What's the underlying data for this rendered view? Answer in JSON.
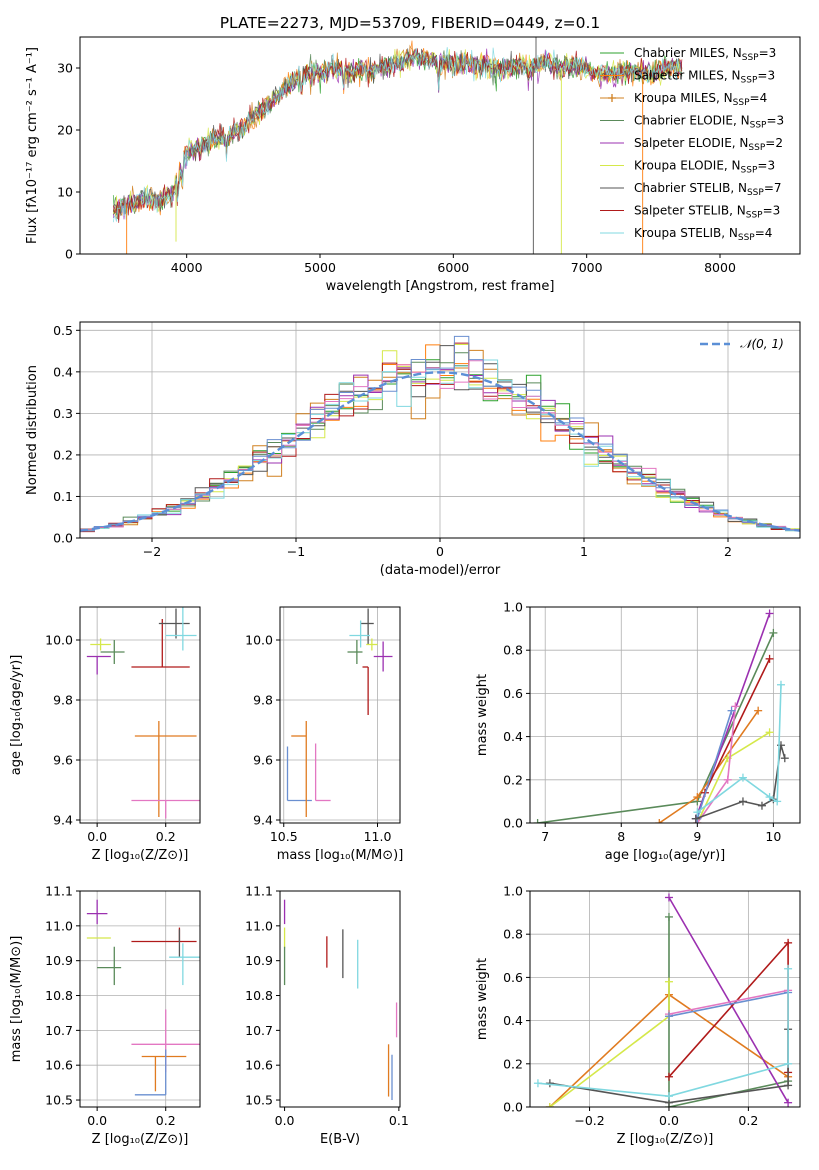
{
  "colors": [
    "#1f77b4",
    "#ff7f0e",
    "#2ca02c",
    "#d62728",
    "#9467bd",
    "#8c564b",
    "#e377c2",
    "#7f7f7f",
    "#bcbd22",
    "#17becf"
  ],
  "chart_data": [
    {
      "id": "spectrum",
      "type": "line",
      "title": "PLATE=2273, MJD=53709, FIBERID=0449, z=0.1",
      "xlabel": "wavelength [Angstrom, rest frame]",
      "ylabel": "Flux [fλ10⁻¹⁷ erg cm⁻² s⁻¹ A⁻¹]",
      "xlim": [
        3200,
        8600
      ],
      "ylim": [
        0,
        35
      ],
      "xticks": [
        4000,
        5000,
        6000,
        7000,
        8000
      ],
      "yticks": [
        0,
        10,
        20,
        30
      ],
      "grid": false,
      "legend_position": "upper-right",
      "spectrum_points": {
        "x": [
          3450,
          3550,
          3700,
          3800,
          3900,
          4000,
          4100,
          4200,
          4300,
          4400,
          4500,
          4600,
          4700,
          4800,
          4900,
          5000,
          5100,
          5200,
          5300,
          5400,
          5500,
          5600,
          5700,
          5800,
          5900,
          6000,
          6100,
          6200,
          6300,
          6400,
          6500,
          6600,
          6700,
          6800,
          6900,
          7000,
          7100,
          7200,
          7300,
          7400,
          7500,
          7600,
          7700
        ],
        "y": [
          7,
          8,
          9,
          8.5,
          10,
          16.5,
          17.5,
          18.5,
          19,
          20,
          22,
          24,
          26,
          28,
          29,
          29.5,
          30,
          29.5,
          29.5,
          29.5,
          30.5,
          31,
          32,
          31.5,
          31,
          30.5,
          31,
          30.5,
          30,
          30,
          30.5,
          30,
          31,
          30,
          30.5,
          29.5,
          29,
          29,
          29.5,
          29.5,
          29,
          30,
          30
        ]
      },
      "series": [
        {
          "name": "Chabrier MILES, N_SSP=3",
          "label_main": "Chabrier MILES, N",
          "label_sub": "SSP",
          "label_tail": "=3",
          "color": "#2ca02c",
          "marker": ""
        },
        {
          "name": "Salpeter MILES, N_SSP=3",
          "label_main": "Salpeter MILES, N",
          "label_sub": "SSP",
          "label_tail": "=3",
          "color": "#ff7f0e",
          "marker": ""
        },
        {
          "name": "Kroupa MILES, N_SSP=4",
          "label_main": "Kroupa MILES, N",
          "label_sub": "SSP",
          "label_tail": "=4",
          "color": "#d08020",
          "marker": "+"
        },
        {
          "name": "Chabrier ELODIE, N_SSP=3",
          "label_main": "Chabrier ELODIE, N",
          "label_sub": "SSP",
          "label_tail": "=3",
          "color": "#5a8a5a",
          "marker": ""
        },
        {
          "name": "Salpeter ELODIE, N_SSP=2",
          "label_main": "Salpeter ELODIE, N",
          "label_sub": "SSP",
          "label_tail": "=2",
          "color": "#9b30b0",
          "marker": ""
        },
        {
          "name": "Kroupa ELODIE, N_SSP=3",
          "label_main": "Kroupa ELODIE, N",
          "label_sub": "SSP",
          "label_tail": "=3",
          "color": "#d5e84a",
          "marker": ""
        },
        {
          "name": "Chabrier STELIB, N_SSP=7",
          "label_main": "Chabrier STELIB, N",
          "label_sub": "SSP",
          "label_tail": "=7",
          "color": "#555555",
          "marker": ""
        },
        {
          "name": "Salpeter STELIB, N_SSP=3",
          "label_main": "Salpeter STELIB, N",
          "label_sub": "SSP",
          "label_tail": "=3",
          "color": "#b01a1a",
          "marker": ""
        },
        {
          "name": "Kroupa STELIB, N_SSP=4",
          "label_main": "Kroupa STELIB, N",
          "label_sub": "SSP",
          "label_tail": "=4",
          "color": "#80d8e0",
          "marker": ""
        }
      ]
    },
    {
      "id": "residuals",
      "type": "line",
      "xlabel": "(data-model)/error",
      "ylabel": "Normed distribution",
      "xlim": [
        -2.5,
        2.5
      ],
      "ylim": [
        0,
        0.52
      ],
      "xticks": [
        -2,
        -1,
        0,
        1,
        2
      ],
      "yticks": [
        0.0,
        0.1,
        0.2,
        0.3,
        0.4,
        0.5
      ],
      "grid": true,
      "legend": "𝒩(0, 1)",
      "legend_position": "upper-right",
      "reference_curve": {
        "name": "N(0,1)",
        "mean": 0,
        "sigma": 1,
        "color": "#5b8fd6",
        "style": "dashed"
      },
      "histogram_bin_width": 0.1,
      "histogram_colors": [
        "#2ca02c",
        "#ff7f0e",
        "#d08020",
        "#5a8a5a",
        "#9b30b0",
        "#d5e84a",
        "#555555",
        "#b01a1a",
        "#80d8e0",
        "#e377c2",
        "#6a8fd0"
      ]
    },
    {
      "id": "z-age",
      "type": "scatter",
      "xlabel": "Z [log₁₀(Z/Z⊙)]",
      "ylabel": "age  [log₁₀(age/yr)]",
      "xlim": [
        -0.05,
        0.3
      ],
      "ylim": [
        9.39,
        10.11
      ],
      "xticks": [
        0.0,
        0.2
      ],
      "yticks": [
        9.4,
        9.6,
        9.8,
        10.0
      ],
      "grid": true,
      "points": [
        {
          "x": 0.18,
          "y": 9.68,
          "xerr": [
            0.07,
            0.11
          ],
          "yerr": [
            0.27,
            0.05
          ],
          "color": "#e07b20"
        },
        {
          "x": 0.2,
          "y": 9.465,
          "xerr": [
            0.1,
            0.1
          ],
          "yerr": [
            0.06,
            0.0
          ],
          "color": "#e377c2"
        },
        {
          "x": 0.19,
          "y": 9.91,
          "xerr": [
            0.09,
            0.08
          ],
          "yerr": [
            0.0,
            0.16
          ],
          "color": "#b01a1a"
        },
        {
          "x": 0.23,
          "y": 10.055,
          "xerr": [
            0.05,
            0.04
          ],
          "yerr": [
            0.05,
            0.05
          ],
          "color": "#555555"
        },
        {
          "x": 0.25,
          "y": 10.015,
          "xerr": [
            0.05,
            0.04
          ],
          "yerr": [
            0.05,
            0.1
          ],
          "color": "#80d8e0"
        },
        {
          "x": 0.0,
          "y": 9.945,
          "xerr": [
            0.03,
            0.04
          ],
          "yerr": [
            0.06,
            0.0
          ],
          "color": "#9b30b0"
        },
        {
          "x": 0.01,
          "y": 9.985,
          "xerr": [
            0.03,
            0.03
          ],
          "yerr": [
            0.02,
            0.02
          ],
          "color": "#d5e84a"
        },
        {
          "x": 0.05,
          "y": 9.96,
          "xerr": [
            0.04,
            0.03
          ],
          "yerr": [
            0.04,
            0.04
          ],
          "color": "#5a8a5a"
        }
      ]
    },
    {
      "id": "mass-age",
      "type": "scatter",
      "xlabel": "mass [log₁₀(M/M⊙)]",
      "ylabel": "",
      "xlim": [
        10.48,
        11.12
      ],
      "ylim": [
        9.39,
        10.11
      ],
      "xticks": [
        10.5,
        11.0
      ],
      "yticks": [
        9.4,
        9.6,
        9.8,
        10.0
      ],
      "grid": true,
      "points": [
        {
          "x": 10.52,
          "y": 9.465,
          "xerr": [
            0.0,
            0.13
          ],
          "yerr": [
            0.0,
            0.18
          ],
          "color": "#6a8fd0"
        },
        {
          "x": 10.62,
          "y": 9.68,
          "xerr": [
            0.08,
            0.0
          ],
          "yerr": [
            0.27,
            0.05
          ],
          "color": "#e07b20"
        },
        {
          "x": 10.67,
          "y": 9.465,
          "xerr": [
            0.0,
            0.08
          ],
          "yerr": [
            0.0,
            0.19
          ],
          "color": "#e377c2"
        },
        {
          "x": 10.95,
          "y": 9.91,
          "xerr": [
            0.03,
            0.0
          ],
          "yerr": [
            0.16,
            0.0
          ],
          "color": "#b01a1a"
        },
        {
          "x": 10.95,
          "y": 10.055,
          "xerr": [
            0.04,
            0.03
          ],
          "yerr": [
            0.07,
            0.05
          ],
          "color": "#555555"
        },
        {
          "x": 10.91,
          "y": 10.015,
          "xerr": [
            0.06,
            0.05
          ],
          "yerr": [
            0.04,
            0.05
          ],
          "color": "#80d8e0"
        },
        {
          "x": 11.03,
          "y": 9.945,
          "xerr": [
            0.05,
            0.05
          ],
          "yerr": [
            0.05,
            0.05
          ],
          "color": "#9b30b0"
        },
        {
          "x": 10.97,
          "y": 9.985,
          "xerr": [
            0.03,
            0.03
          ],
          "yerr": [
            0.02,
            0.02
          ],
          "color": "#d5e84a"
        },
        {
          "x": 10.89,
          "y": 9.96,
          "xerr": [
            0.05,
            0.03
          ],
          "yerr": [
            0.04,
            0.04
          ],
          "color": "#5a8a5a"
        }
      ]
    },
    {
      "id": "age-massweight",
      "type": "line",
      "xlabel": "age  [log₁₀(age/yr)]",
      "ylabel": "mass weight",
      "xlim": [
        6.8,
        10.35
      ],
      "ylim": [
        0,
        1.0
      ],
      "xticks": [
        7,
        8,
        9,
        10
      ],
      "yticks": [
        0.0,
        0.2,
        0.4,
        0.6,
        0.8,
        1.0
      ],
      "grid": true,
      "series": [
        {
          "color": "#5a8a5a",
          "x": [
            6.9,
            9.0,
            10.0
          ],
          "y": [
            0.0,
            0.1,
            0.88
          ]
        },
        {
          "color": "#e07b20",
          "x": [
            8.5,
            9.0,
            9.8
          ],
          "y": [
            0.0,
            0.12,
            0.52
          ]
        },
        {
          "color": "#9b30b0",
          "x": [
            8.98,
            9.95
          ],
          "y": [
            0.02,
            0.97
          ]
        },
        {
          "color": "#b01a1a",
          "x": [
            9.1,
            9.95
          ],
          "y": [
            0.14,
            0.76
          ]
        },
        {
          "color": "#d5e84a",
          "x": [
            9.0,
            9.4,
            9.95
          ],
          "y": [
            0.0,
            0.3,
            0.42
          ]
        },
        {
          "color": "#e377c2",
          "x": [
            9.0,
            9.4,
            9.5
          ],
          "y": [
            0.0,
            0.2,
            0.54
          ]
        },
        {
          "color": "#6a8fd0",
          "x": [
            9.0,
            9.45
          ],
          "y": [
            0.02,
            0.52
          ]
        },
        {
          "color": "#555555",
          "x": [
            8.98,
            9.6,
            9.85,
            10.0,
            10.1,
            10.15
          ],
          "y": [
            0.02,
            0.1,
            0.08,
            0.11,
            0.36,
            0.3
          ]
        },
        {
          "color": "#80d8e0",
          "x": [
            9.0,
            9.6,
            9.95,
            10.05,
            10.1
          ],
          "y": [
            0.05,
            0.21,
            0.12,
            0.1,
            0.64
          ]
        }
      ]
    },
    {
      "id": "z-mass",
      "type": "scatter",
      "xlabel": "Z [log₁₀(Z/Z⊙)]",
      "ylabel": "mass [log₁₀(M/M⊙)]",
      "xlim": [
        -0.05,
        0.3
      ],
      "ylim": [
        10.48,
        11.1
      ],
      "xticks": [
        0.0,
        0.2
      ],
      "yticks": [
        10.5,
        10.6,
        10.7,
        10.8,
        10.9,
        11.0,
        11.1
      ],
      "grid": true,
      "points": [
        {
          "x": 0.0,
          "y": 11.035,
          "xerr": [
            0.03,
            0.03
          ],
          "yerr": [
            0.03,
            0.04
          ],
          "color": "#9b30b0"
        },
        {
          "x": 0.01,
          "y": 10.965,
          "xerr": [
            0.04,
            0.03
          ],
          "yerr": [
            0.0,
            0.0
          ],
          "color": "#d5e84a"
        },
        {
          "x": 0.05,
          "y": 10.88,
          "xerr": [
            0.05,
            0.02
          ],
          "yerr": [
            0.05,
            0.06
          ],
          "color": "#5a8a5a"
        },
        {
          "x": 0.24,
          "y": 10.955,
          "xerr": [
            0.14,
            0.05
          ],
          "yerr": [
            0.0,
            0.04
          ],
          "color": "#b01a1a"
        },
        {
          "x": 0.24,
          "y": 10.95,
          "xerr": [
            0.0,
            0.0
          ],
          "yerr": [
            0.04,
            0.04
          ],
          "color": "#555555"
        },
        {
          "x": 0.25,
          "y": 10.91,
          "xerr": [
            0.04,
            0.05
          ],
          "yerr": [
            0.08,
            0.04
          ],
          "color": "#80d8e0"
        },
        {
          "x": 0.2,
          "y": 10.66,
          "xerr": [
            0.1,
            0.1
          ],
          "yerr": [
            0.08,
            0.1
          ],
          "color": "#e377c2"
        },
        {
          "x": 0.17,
          "y": 10.625,
          "xerr": [
            0.04,
            0.09
          ],
          "yerr": [
            0.1,
            0.0
          ],
          "color": "#e07b20"
        },
        {
          "x": 0.2,
          "y": 10.515,
          "xerr": [
            0.09,
            0.0
          ],
          "yerr": [
            0.0,
            0.13
          ],
          "color": "#6a8fd0"
        }
      ]
    },
    {
      "id": "ebv-mass",
      "type": "scatter",
      "xlabel": "E(B-V)",
      "ylabel": "",
      "xlim": [
        -0.004,
        0.101
      ],
      "ylim": [
        10.48,
        11.1
      ],
      "xticks": [
        0.0,
        0.1
      ],
      "yticks": [
        10.5,
        10.6,
        10.7,
        10.8,
        10.9,
        11.0,
        11.1
      ],
      "grid": false,
      "points": [
        {
          "x": 0.0,
          "y": 11.035,
          "xerr": [
            0,
            0
          ],
          "yerr": [
            0.03,
            0.04
          ],
          "color": "#9b30b0"
        },
        {
          "x": 0.0,
          "y": 10.965,
          "xerr": [
            0,
            0
          ],
          "yerr": [
            0.03,
            0.03
          ],
          "color": "#d5e84a"
        },
        {
          "x": 0.0,
          "y": 10.88,
          "xerr": [
            0,
            0
          ],
          "yerr": [
            0.05,
            0.06
          ],
          "color": "#5a8a5a"
        },
        {
          "x": 0.037,
          "y": 10.93,
          "xerr": [
            0,
            0
          ],
          "yerr": [
            0.05,
            0.04
          ],
          "color": "#b01a1a"
        },
        {
          "x": 0.051,
          "y": 10.92,
          "xerr": [
            0,
            0
          ],
          "yerr": [
            0.07,
            0.07
          ],
          "color": "#555555"
        },
        {
          "x": 0.064,
          "y": 10.89,
          "xerr": [
            0,
            0
          ],
          "yerr": [
            0.07,
            0.07
          ],
          "color": "#80d8e0"
        },
        {
          "x": 0.098,
          "y": 10.73,
          "xerr": [
            0,
            0
          ],
          "yerr": [
            0.05,
            0.05
          ],
          "color": "#e377c2"
        },
        {
          "x": 0.091,
          "y": 10.6,
          "xerr": [
            0,
            0
          ],
          "yerr": [
            0.09,
            0.06
          ],
          "color": "#e07b20"
        },
        {
          "x": 0.094,
          "y": 10.57,
          "xerr": [
            0,
            0
          ],
          "yerr": [
            0.07,
            0.06
          ],
          "color": "#6a8fd0"
        }
      ]
    },
    {
      "id": "z-massweight",
      "type": "line",
      "xlabel": "Z [log₁₀(Z/Z⊙)]",
      "ylabel": "mass weight",
      "xlim": [
        -0.35,
        0.33
      ],
      "ylim": [
        0,
        1.0
      ],
      "xticks": [
        -0.2,
        0.0,
        0.2
      ],
      "yticks": [
        0.0,
        0.2,
        0.4,
        0.6,
        0.8,
        1.0
      ],
      "grid": true,
      "series": [
        {
          "color": "#5a8a5a",
          "x": [
            0.0,
            0.0,
            0.3
          ],
          "y": [
            0.88,
            0.0,
            0.12
          ]
        },
        {
          "color": "#e07b20",
          "x": [
            -0.3,
            0.0,
            0.3
          ],
          "y": [
            0.0,
            0.52,
            0.14
          ]
        },
        {
          "color": "#9b30b0",
          "x": [
            0.0,
            0.3
          ],
          "y": [
            0.97,
            0.02
          ]
        },
        {
          "color": "#b01a1a",
          "x": [
            0.0,
            0.3,
            0.3
          ],
          "y": [
            0.14,
            0.76,
            0.16
          ]
        },
        {
          "color": "#d5e84a",
          "x": [
            -0.3,
            0.0,
            0.0
          ],
          "y": [
            0.0,
            0.42,
            0.58
          ]
        },
        {
          "color": "#e377c2",
          "x": [
            0.0,
            0.3
          ],
          "y": [
            0.43,
            0.54
          ]
        },
        {
          "color": "#6a8fd0",
          "x": [
            0.0,
            0.3
          ],
          "y": [
            0.42,
            0.53
          ]
        },
        {
          "color": "#555555",
          "x": [
            -0.3,
            0.0,
            0.3,
            0.3
          ],
          "y": [
            0.11,
            0.02,
            0.1,
            0.36
          ]
        },
        {
          "color": "#80d8e0",
          "x": [
            -0.33,
            0.0,
            0.3,
            0.3
          ],
          "y": [
            0.11,
            0.05,
            0.2,
            0.64
          ]
        }
      ]
    }
  ]
}
